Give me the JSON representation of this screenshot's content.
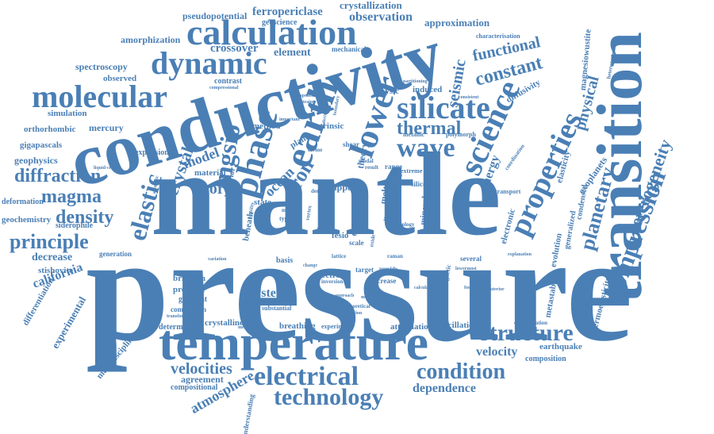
{
  "color": "#4a7fb5",
  "words": [
    {
      "text": "pressure",
      "orientation": "horizontal"
    },
    {
      "text": "mantle",
      "orientation": "horizontal"
    },
    {
      "text": "conductivity",
      "orientation": "tilted"
    },
    {
      "text": "transition",
      "orientation": "vertical"
    },
    {
      "text": "temperature",
      "orientation": "horizontal"
    },
    {
      "text": "calculation",
      "orientation": "horizontal"
    },
    {
      "text": "dynamic",
      "orientation": "horizontal"
    },
    {
      "text": "molecular",
      "orientation": "horizontal"
    },
    {
      "text": "phase",
      "orientation": "vertical"
    },
    {
      "text": "earth",
      "orientation": "vertical"
    },
    {
      "text": "lower",
      "orientation": "vertical"
    },
    {
      "text": "science",
      "orientation": "vertical"
    },
    {
      "text": "silicate",
      "orientation": "horizontal"
    },
    {
      "text": "wave",
      "orientation": "horizontal"
    },
    {
      "text": "properties",
      "orientation": "vertical"
    },
    {
      "text": "compression",
      "orientation": "vertical"
    },
    {
      "text": "electrical",
      "orientation": "horizontal"
    },
    {
      "text": "technology",
      "orientation": "horizontal"
    },
    {
      "text": "condition",
      "orientation": "horizontal"
    },
    {
      "text": "structure",
      "orientation": "horizontal"
    },
    {
      "text": "elastic",
      "orientation": "vertical"
    },
    {
      "text": "principle",
      "orientation": "horizontal"
    },
    {
      "text": "diffraction",
      "orientation": "horizontal"
    },
    {
      "text": "magma",
      "orientation": "horizontal"
    },
    {
      "text": "density",
      "orientation": "horizontal"
    },
    {
      "text": "mgsio",
      "orientation": "vertical"
    },
    {
      "text": "constant",
      "orientation": "horizontal"
    },
    {
      "text": "functional",
      "orientation": "horizontal"
    },
    {
      "text": "thermal",
      "orientation": "horizontal"
    },
    {
      "text": "planetary",
      "orientation": "vertical"
    },
    {
      "text": "heterogeneity",
      "orientation": "vertical"
    },
    {
      "text": "velocities",
      "orientation": "horizontal"
    },
    {
      "text": "atmosphere",
      "orientation": "tilted"
    },
    {
      "text": "dependence",
      "orientation": "horizontal"
    },
    {
      "text": "iron",
      "orientation": "horizontal"
    },
    {
      "text": "seismic",
      "orientation": "vertical"
    },
    {
      "text": "crystal",
      "orientation": "vertical"
    },
    {
      "text": "model",
      "orientation": "horizontal"
    },
    {
      "text": "core",
      "orientation": "horizontal"
    },
    {
      "text": "ocean",
      "orientation": "tilted"
    },
    {
      "text": "physical",
      "orientation": "vertical"
    },
    {
      "text": "energy",
      "orientation": "vertical"
    },
    {
      "text": "system",
      "orientation": "horizontal"
    },
    {
      "text": "velocity",
      "orientation": "horizontal"
    },
    {
      "text": "crossover",
      "orientation": "horizontal"
    },
    {
      "text": "element",
      "orientation": "horizontal"
    },
    {
      "text": "observation",
      "orientation": "horizontal"
    },
    {
      "text": "ferropericlase",
      "orientation": "horizontal"
    },
    {
      "text": "pseudopotential",
      "orientation": "horizontal"
    },
    {
      "text": "crystallization",
      "orientation": "horizontal"
    },
    {
      "text": "approximation",
      "orientation": "horizontal"
    },
    {
      "text": "amorphization",
      "orientation": "horizontal"
    },
    {
      "text": "spectroscopy",
      "orientation": "horizontal"
    },
    {
      "text": "observed",
      "orientation": "horizontal"
    },
    {
      "text": "simulation",
      "orientation": "horizontal"
    },
    {
      "text": "orthorhombic",
      "orientation": "horizontal"
    },
    {
      "text": "mercury",
      "orientation": "horizontal"
    },
    {
      "text": "gigapascals",
      "orientation": "horizontal"
    },
    {
      "text": "geophysics",
      "orientation": "horizontal"
    },
    {
      "text": "deformation",
      "orientation": "horizontal"
    },
    {
      "text": "geochemistry",
      "orientation": "horizontal"
    },
    {
      "text": "siderophile",
      "orientation": "horizontal"
    },
    {
      "text": "decrease",
      "orientation": "horizontal"
    },
    {
      "text": "stishovite",
      "orientation": "horizontal"
    },
    {
      "text": "california",
      "orientation": "horizontal"
    },
    {
      "text": "experimental",
      "orientation": "tilted"
    },
    {
      "text": "differentiation",
      "orientation": "tilted"
    },
    {
      "text": "multidisciplinary",
      "orientation": "tilted"
    },
    {
      "text": "mission",
      "orientation": "vertical"
    },
    {
      "text": "brillouin",
      "orientation": "horizontal"
    },
    {
      "text": "province",
      "orientation": "horizontal"
    },
    {
      "text": "gradient",
      "orientation": "horizontal"
    },
    {
      "text": "comparison",
      "orientation": "horizontal"
    },
    {
      "text": "crystalline",
      "orientation": "horizontal"
    },
    {
      "text": "determined",
      "orientation": "horizontal"
    },
    {
      "text": "agreement",
      "orientation": "horizontal"
    },
    {
      "text": "compositional",
      "orientation": "horizontal"
    },
    {
      "text": "earthquake",
      "orientation": "horizontal"
    },
    {
      "text": "composition",
      "orientation": "horizontal"
    },
    {
      "text": "oscillation",
      "orientation": "horizontal"
    },
    {
      "text": "attenuation",
      "orientation": "horizontal"
    },
    {
      "text": "breathing",
      "orientation": "horizontal"
    },
    {
      "text": "thermoelasticity",
      "orientation": "vertical"
    },
    {
      "text": "metastable",
      "orientation": "vertical"
    },
    {
      "text": "evolution",
      "orientation": "vertical"
    },
    {
      "text": "generalized",
      "orientation": "vertical"
    },
    {
      "text": "condensed",
      "orientation": "vertical"
    },
    {
      "text": "exoplanets",
      "orientation": "tilted"
    },
    {
      "text": "elasticity",
      "orientation": "vertical"
    },
    {
      "text": "magnesiowustite",
      "orientation": "vertical"
    },
    {
      "text": "characterisation",
      "orientation": "horizontal"
    },
    {
      "text": "heterogeneous",
      "orientation": "horizontal"
    },
    {
      "text": "diffusivity",
      "orientation": "horizontal"
    },
    {
      "text": "physic",
      "orientation": "horizontal"
    },
    {
      "text": "induced",
      "orientation": "horizontal"
    },
    {
      "text": "metallic",
      "orientation": "horizontal"
    },
    {
      "text": "polymorph",
      "orientation": "horizontal"
    },
    {
      "text": "coordination",
      "orientation": "tilted"
    },
    {
      "text": "transport",
      "orientation": "horizontal"
    },
    {
      "text": "electronic",
      "orientation": "vertical"
    },
    {
      "text": "mineral",
      "orientation": "vertical"
    },
    {
      "text": "zone",
      "orientation": "vertical"
    },
    {
      "text": "melt",
      "orientation": "vertical"
    },
    {
      "text": "theory",
      "orientation": "vertical"
    },
    {
      "text": "silicon",
      "orientation": "horizontal"
    },
    {
      "text": "several",
      "orientation": "horizontal"
    },
    {
      "text": "range",
      "orientation": "horizontal"
    },
    {
      "text": "extreme",
      "orientation": "horizontal"
    },
    {
      "text": "upper",
      "orientation": "horizontal"
    },
    {
      "text": "echo",
      "orientation": "vertical"
    },
    {
      "text": "scale",
      "orientation": "horizontal"
    },
    {
      "text": "liquid",
      "orientation": "vertical"
    },
    {
      "text": "fesio",
      "orientation": "horizontal"
    },
    {
      "text": "total",
      "orientation": "vertical"
    },
    {
      "text": "spectra",
      "orientation": "horizontal"
    },
    {
      "text": "target",
      "orientation": "horizontal"
    },
    {
      "text": "increase",
      "orientation": "horizontal"
    },
    {
      "text": "magnetic",
      "orientation": "vertical"
    },
    {
      "text": "raman",
      "orientation": "horizontal"
    },
    {
      "text": "lattice",
      "orientation": "horizontal"
    },
    {
      "text": "basis",
      "orientation": "horizontal"
    },
    {
      "text": "beneath",
      "orientation": "vertical"
    },
    {
      "text": "state",
      "orientation": "horizontal"
    },
    {
      "text": "planet",
      "orientation": "tilted"
    },
    {
      "text": "method",
      "orientation": "horizontal"
    },
    {
      "text": "extrinsic",
      "orientation": "horizontal"
    },
    {
      "text": "material",
      "orientation": "horizontal"
    },
    {
      "text": "behavior",
      "orientation": "vertical"
    },
    {
      "text": "expansion",
      "orientation": "horizontal"
    },
    {
      "text": "contrast",
      "orientation": "horizontal"
    },
    {
      "text": "geoscience",
      "orientation": "horizontal"
    },
    {
      "text": "mechanical",
      "orientation": "horizontal"
    },
    {
      "text": "generation",
      "orientation": "horizontal"
    },
    {
      "text": "experiment",
      "orientation": "horizontal"
    },
    {
      "text": "substantial",
      "orientation": "horizontal"
    },
    {
      "text": "theoretical",
      "orientation": "horizontal"
    },
    {
      "text": "understanding",
      "orientation": "vertical"
    },
    {
      "text": "crystallisation",
      "orientation": "horizontal"
    },
    {
      "text": "explanation",
      "orientation": "horizontal"
    },
    {
      "text": "shear",
      "orientation": "horizontal"
    },
    {
      "text": "divine",
      "orientation": "horizontal"
    },
    {
      "text": "important",
      "orientation": "horizontal"
    },
    {
      "text": "component",
      "orientation": "horizontal"
    },
    {
      "text": "constraint",
      "orientation": "horizontal"
    },
    {
      "text": "compressional",
      "orientation": "horizontal"
    },
    {
      "text": "partitioning",
      "orientation": "horizontal"
    },
    {
      "text": "derivative",
      "orientation": "vertical"
    },
    {
      "text": "atomistic",
      "orientation": "vertical"
    },
    {
      "text": "liquid-crystal",
      "orientation": "horizontal"
    },
    {
      "text": "stability",
      "orientation": "vertical"
    },
    {
      "text": "mechanism",
      "orientation": "horizontal"
    },
    {
      "text": "transformation",
      "orientation": "horizontal"
    },
    {
      "text": "variation",
      "orientation": "horizontal"
    },
    {
      "text": "frequency",
      "orientation": "vertical"
    },
    {
      "text": "uncertainty",
      "orientation": "horizontal"
    },
    {
      "text": "formation",
      "orientation": "horizontal"
    },
    {
      "text": "calculated",
      "orientation": "horizontal"
    },
    {
      "text": "consistent",
      "orientation": "horizontal"
    },
    {
      "text": "lowermost",
      "orientation": "horizontal"
    },
    {
      "text": "boundary",
      "orientation": "vertical"
    },
    {
      "text": "interior",
      "orientation": "horizontal"
    },
    {
      "text": "measurement",
      "orientation": "horizontal"
    },
    {
      "text": "propagation",
      "orientation": "horizontal"
    },
    {
      "text": "inversion",
      "orientation": "horizontal"
    },
    {
      "text": "free",
      "orientation": "horizontal"
    },
    {
      "text": "solid",
      "orientation": "vertical"
    },
    {
      "text": "vortex",
      "orientation": "vertical"
    },
    {
      "text": "modal",
      "orientation": "horizontal"
    },
    {
      "text": "spin",
      "orientation": "vertical"
    },
    {
      "text": "type",
      "orientation": "horizontal"
    },
    {
      "text": "matter",
      "orientation": "horizontal"
    },
    {
      "text": "result",
      "orientation": "horizontal"
    },
    {
      "text": "dense",
      "orientation": "horizontal"
    },
    {
      "text": "change",
      "orientation": "horizontal"
    },
    {
      "text": "approach",
      "orientation": "horizontal"
    },
    {
      "text": "contain",
      "orientation": "horizontal"
    },
    {
      "text": "provide",
      "orientation": "horizontal"
    },
    {
      "text": "geology",
      "orientation": "horizontal"
    },
    {
      "text": "oxide",
      "orientation": "vertical"
    }
  ]
}
